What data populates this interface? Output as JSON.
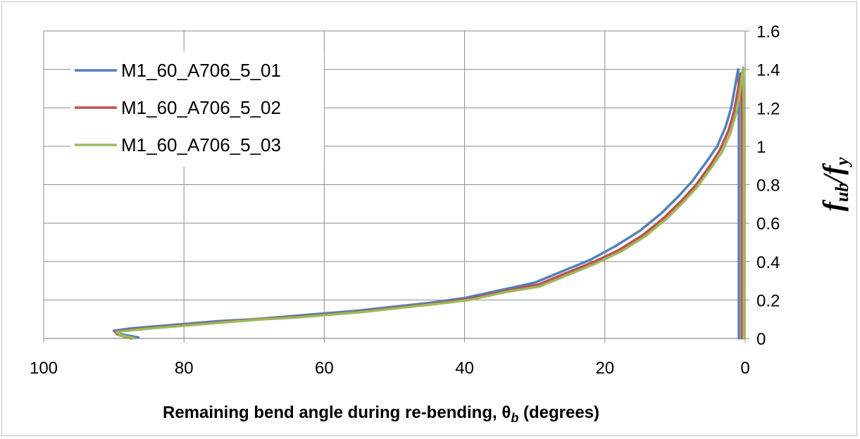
{
  "chart_data": {
    "type": "line",
    "title": "",
    "xlabel_main": "Remaining bend angle during re-bending, θ",
    "xlabel_sub": "b",
    "xlabel_tail": " (degrees)",
    "ylabel_f1": "f",
    "ylabel_sub1": "ub",
    "ylabel_slash": "/",
    "ylabel_f2": "f",
    "ylabel_sub2": "y",
    "xlim": [
      100,
      0
    ],
    "ylim": [
      0,
      1.6
    ],
    "x_reversed": true,
    "y_axis_side": "right",
    "x_ticks": [
      "100",
      "80",
      "60",
      "40",
      "20",
      "0"
    ],
    "x_tick_values": [
      100,
      80,
      60,
      40,
      20,
      0
    ],
    "y_ticks": [
      "0",
      "0.2",
      "0.4",
      "0.6",
      "0.8",
      "1",
      "1.2",
      "1.4",
      "1.6"
    ],
    "y_tick_values": [
      0,
      0.2,
      0.4,
      0.6,
      0.8,
      1,
      1.2,
      1.4,
      1.6
    ],
    "grid": true,
    "legend_position": "top-left",
    "series": [
      {
        "name": "M1_60_A706_5_01",
        "color": "#4f81bd",
        "x": [
          0.9,
          0.9,
          1.0,
          1.2,
          1.5,
          2.0,
          2.8,
          4.0,
          5.5,
          7.5,
          9.5,
          12.0,
          15.0,
          18.5,
          22.0,
          26.0,
          30.0,
          35.0,
          40.0,
          45.0,
          50.0,
          55.0,
          60.0,
          65.0,
          70.0,
          75.0,
          80.0,
          85.0,
          88.0,
          90.0,
          89.5,
          88.0,
          86.5
        ],
        "y": [
          0.0,
          1.25,
          1.4,
          1.36,
          1.3,
          1.2,
          1.1,
          1.0,
          0.92,
          0.82,
          0.74,
          0.65,
          0.56,
          0.48,
          0.41,
          0.35,
          0.29,
          0.25,
          0.21,
          0.185,
          0.165,
          0.145,
          0.13,
          0.115,
          0.1,
          0.09,
          0.075,
          0.06,
          0.05,
          0.04,
          0.025,
          0.015,
          0.005
        ]
      },
      {
        "name": "M1_60_A706_5_02",
        "color": "#c0504d",
        "x": [
          0.5,
          0.5,
          0.6,
          0.8,
          1.1,
          1.6,
          2.4,
          3.6,
          5.0,
          7.0,
          9.0,
          11.5,
          14.5,
          18.0,
          21.5,
          25.5,
          29.5,
          34.5,
          39.5,
          44.5,
          49.5,
          54.5,
          59.5,
          64.5,
          69.5,
          74.5,
          79.5,
          84.5,
          87.5,
          89.8,
          89.5,
          88.5,
          87.5
        ],
        "y": [
          0.0,
          1.2,
          1.38,
          1.34,
          1.28,
          1.18,
          1.08,
          0.98,
          0.9,
          0.8,
          0.72,
          0.63,
          0.54,
          0.46,
          0.4,
          0.34,
          0.28,
          0.245,
          0.205,
          0.18,
          0.16,
          0.14,
          0.125,
          0.11,
          0.1,
          0.085,
          0.07,
          0.055,
          0.045,
          0.035,
          0.02,
          0.01,
          0.0
        ]
      },
      {
        "name": "M1_60_A706_5_03",
        "color": "#9bbb59",
        "x": [
          0.2,
          0.2,
          0.3,
          0.5,
          0.8,
          1.3,
          2.1,
          3.3,
          4.8,
          6.8,
          8.8,
          11.3,
          14.3,
          17.8,
          21.3,
          25.3,
          29.3,
          34.3,
          39.3,
          44.3,
          49.3,
          54.3,
          59.3,
          64.3,
          69.3,
          74.3,
          79.3,
          84.3,
          87.3,
          89.6,
          89.2,
          88.0,
          87.0
        ],
        "y": [
          0.0,
          1.25,
          1.41,
          1.35,
          1.27,
          1.17,
          1.07,
          0.97,
          0.89,
          0.79,
          0.71,
          0.62,
          0.53,
          0.45,
          0.39,
          0.33,
          0.27,
          0.24,
          0.2,
          0.178,
          0.158,
          0.138,
          0.123,
          0.108,
          0.098,
          0.083,
          0.068,
          0.053,
          0.043,
          0.033,
          0.018,
          0.008,
          0.0
        ]
      }
    ]
  }
}
